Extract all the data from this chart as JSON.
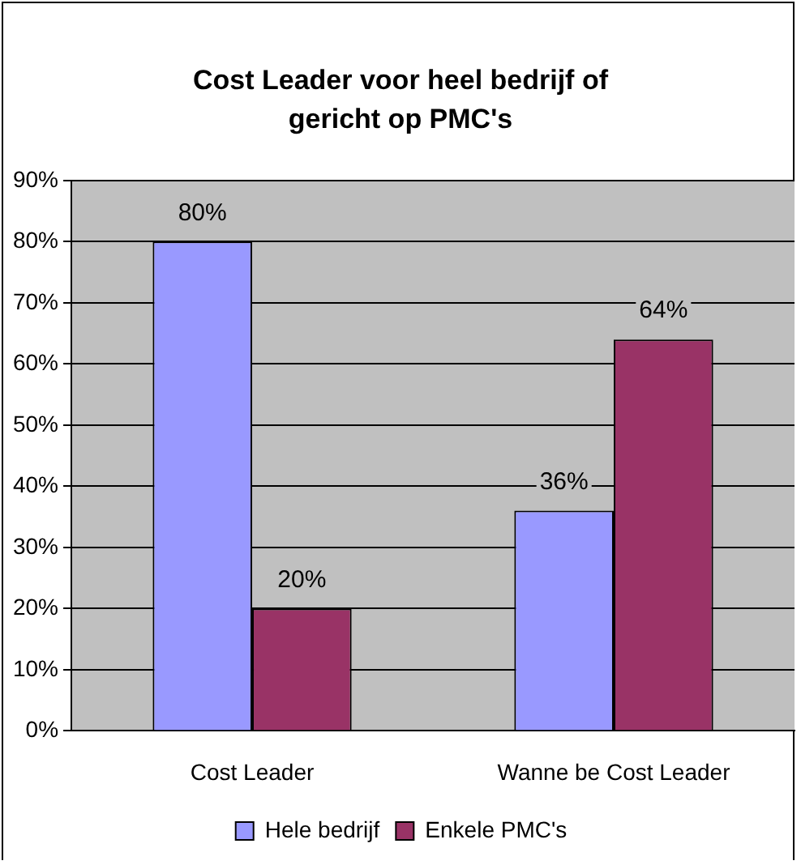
{
  "chart_data": {
    "type": "bar",
    "title": "Cost Leader voor heel bedrijf of gericht op PMC's",
    "categories": [
      "Cost Leader",
      "Wanne be Cost Leader"
    ],
    "series": [
      {
        "name": "Hele bedrijf",
        "color": "#9999ff",
        "values": [
          80,
          36
        ],
        "value_labels": [
          "80%",
          "36%"
        ]
      },
      {
        "name": "Enkele PMC's",
        "color": "#993366",
        "values": [
          20,
          64
        ],
        "value_labels": [
          "20%",
          "64%"
        ]
      }
    ],
    "ylim": [
      0,
      90
    ],
    "yticks": [
      {
        "value": 0,
        "label": "0%"
      },
      {
        "value": 10,
        "label": "10%"
      },
      {
        "value": 20,
        "label": "20%"
      },
      {
        "value": 30,
        "label": "30%"
      },
      {
        "value": 40,
        "label": "40%"
      },
      {
        "value": 50,
        "label": "50%"
      },
      {
        "value": 60,
        "label": "60%"
      },
      {
        "value": 70,
        "label": "70%"
      },
      {
        "value": 80,
        "label": "80%"
      },
      {
        "value": 90,
        "label": "90%"
      }
    ],
    "grid": "y",
    "legend": "bottom"
  }
}
